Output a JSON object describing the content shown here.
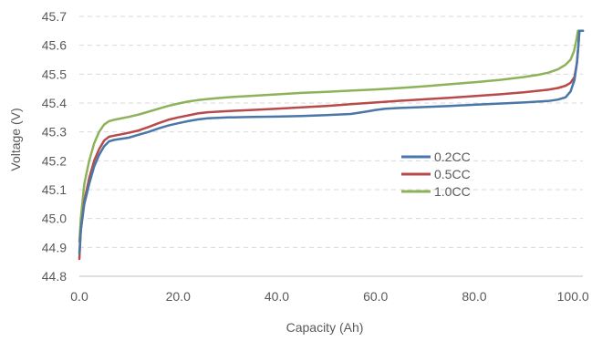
{
  "chart_data": {
    "type": "line",
    "title": "",
    "xlabel": "Capacity (Ah)",
    "ylabel": "Voltage (V)",
    "xlim": [
      0,
      102
    ],
    "ylim": [
      44.8,
      45.7
    ],
    "x_ticks": [
      0,
      20,
      40,
      60,
      80,
      100
    ],
    "x_tick_labels": [
      "0.0",
      "20.0",
      "40.0",
      "60.0",
      "80.0",
      "100.0"
    ],
    "y_ticks": [
      44.8,
      44.9,
      45.0,
      45.1,
      45.2,
      45.3,
      45.4,
      45.5,
      45.6,
      45.7
    ],
    "y_tick_labels": [
      "44.8",
      "44.9",
      "45.0",
      "45.1",
      "45.2",
      "45.3",
      "45.4",
      "45.5",
      "45.6",
      "45.7"
    ],
    "grid": "horizontal dashed",
    "legend_position": "center-right",
    "series": [
      {
        "name": "0.2CC",
        "color": "#4a76a8",
        "points": [
          [
            0,
            44.88
          ],
          [
            0.3,
            44.96
          ],
          [
            1,
            45.05
          ],
          [
            2,
            45.12
          ],
          [
            3,
            45.18
          ],
          [
            4,
            45.22
          ],
          [
            5,
            45.25
          ],
          [
            6,
            45.267
          ],
          [
            7,
            45.272
          ],
          [
            8,
            45.275
          ],
          [
            10,
            45.28
          ],
          [
            12,
            45.29
          ],
          [
            14,
            45.3
          ],
          [
            16,
            45.312
          ],
          [
            18,
            45.322
          ],
          [
            20,
            45.33
          ],
          [
            22,
            45.337
          ],
          [
            24,
            45.343
          ],
          [
            26,
            45.347
          ],
          [
            28,
            45.349
          ],
          [
            30,
            45.35
          ],
          [
            35,
            45.352
          ],
          [
            40,
            45.353
          ],
          [
            45,
            45.355
          ],
          [
            50,
            45.358
          ],
          [
            55,
            45.362
          ],
          [
            58,
            45.37
          ],
          [
            60,
            45.376
          ],
          [
            62,
            45.38
          ],
          [
            65,
            45.383
          ],
          [
            70,
            45.386
          ],
          [
            75,
            45.39
          ],
          [
            80,
            45.394
          ],
          [
            85,
            45.398
          ],
          [
            90,
            45.402
          ],
          [
            95,
            45.407
          ],
          [
            97,
            45.412
          ],
          [
            98.5,
            45.42
          ],
          [
            99.5,
            45.44
          ],
          [
            100.3,
            45.48
          ],
          [
            100.8,
            45.54
          ],
          [
            101.1,
            45.6
          ],
          [
            101.3,
            45.65
          ],
          [
            102,
            45.65
          ]
        ]
      },
      {
        "name": "0.5CC",
        "color": "#b84a4a",
        "points": [
          [
            0,
            44.86
          ],
          [
            0.3,
            44.96
          ],
          [
            1,
            45.06
          ],
          [
            2,
            45.14
          ],
          [
            3,
            45.2
          ],
          [
            4,
            45.24
          ],
          [
            5,
            45.27
          ],
          [
            6,
            45.283
          ],
          [
            7,
            45.287
          ],
          [
            8,
            45.29
          ],
          [
            10,
            45.297
          ],
          [
            12,
            45.305
          ],
          [
            14,
            45.317
          ],
          [
            16,
            45.33
          ],
          [
            18,
            45.342
          ],
          [
            20,
            45.35
          ],
          [
            22,
            45.357
          ],
          [
            24,
            45.364
          ],
          [
            26,
            45.368
          ],
          [
            28,
            45.37
          ],
          [
            30,
            45.372
          ],
          [
            35,
            45.376
          ],
          [
            40,
            45.38
          ],
          [
            45,
            45.385
          ],
          [
            50,
            45.39
          ],
          [
            55,
            45.396
          ],
          [
            60,
            45.402
          ],
          [
            65,
            45.408
          ],
          [
            70,
            45.413
          ],
          [
            75,
            45.418
          ],
          [
            80,
            45.424
          ],
          [
            85,
            45.43
          ],
          [
            90,
            45.437
          ],
          [
            95,
            45.446
          ],
          [
            97,
            45.452
          ],
          [
            98.5,
            45.46
          ],
          [
            99.5,
            45.47
          ],
          [
            100.3,
            45.49
          ],
          [
            100.8,
            45.54
          ],
          [
            101.1,
            45.6
          ],
          [
            101.3,
            45.65
          ],
          [
            102,
            45.65
          ]
        ]
      },
      {
        "name": "1.0CC",
        "color": "#8db25a",
        "points": [
          [
            0,
            44.92
          ],
          [
            0.3,
            45.0
          ],
          [
            1,
            45.12
          ],
          [
            2,
            45.2
          ],
          [
            3,
            45.26
          ],
          [
            4,
            45.3
          ],
          [
            5,
            45.325
          ],
          [
            6,
            45.337
          ],
          [
            7,
            45.342
          ],
          [
            8,
            45.345
          ],
          [
            10,
            45.352
          ],
          [
            12,
            45.36
          ],
          [
            14,
            45.37
          ],
          [
            16,
            45.38
          ],
          [
            18,
            45.39
          ],
          [
            20,
            45.398
          ],
          [
            22,
            45.405
          ],
          [
            24,
            45.41
          ],
          [
            26,
            45.414
          ],
          [
            28,
            45.417
          ],
          [
            30,
            45.42
          ],
          [
            35,
            45.425
          ],
          [
            40,
            45.43
          ],
          [
            45,
            45.435
          ],
          [
            50,
            45.439
          ],
          [
            55,
            45.443
          ],
          [
            60,
            45.447
          ],
          [
            65,
            45.452
          ],
          [
            70,
            45.458
          ],
          [
            75,
            45.465
          ],
          [
            80,
            45.472
          ],
          [
            85,
            45.48
          ],
          [
            90,
            45.49
          ],
          [
            93,
            45.498
          ],
          [
            95,
            45.505
          ],
          [
            97,
            45.517
          ],
          [
            98.5,
            45.533
          ],
          [
            99.5,
            45.55
          ],
          [
            100.2,
            45.58
          ],
          [
            100.7,
            45.62
          ],
          [
            101,
            45.65
          ],
          [
            102,
            45.65
          ]
        ]
      }
    ]
  }
}
